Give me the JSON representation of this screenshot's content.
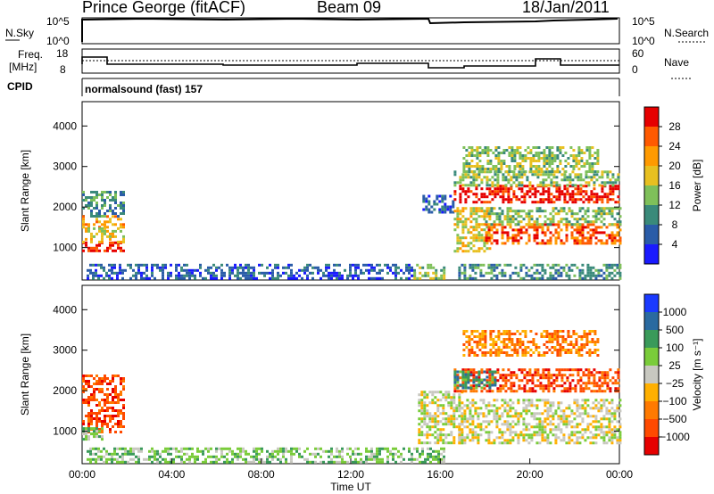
{
  "header": {
    "station": "Prince George (fitACF)",
    "beam": "Beam 09",
    "date": "18/Jan/2011"
  },
  "nsky_panel": {
    "left_label": "N.Sky",
    "left_ticks": [
      "10^5",
      "10^0"
    ],
    "right_ticks": [
      "10^5",
      "10^0"
    ],
    "right_label": "N.Search"
  },
  "freq_panel": {
    "left_label_1": "Freq.",
    "left_label_2": "[MHz]",
    "left_ticks": [
      "18",
      "8"
    ],
    "right_ticks": [
      "60",
      "0"
    ],
    "right_label": "Nave"
  },
  "cpid": {
    "label": "CPID",
    "mode": "normalsound (fast) 157"
  },
  "chart_data": [
    {
      "type": "heatmap",
      "name": "power",
      "ylabel": "Slant Range [km]",
      "ylim": [
        200,
        4600
      ],
      "yticks": [
        "1000",
        "2000",
        "3000",
        "4000"
      ],
      "xlim": [
        0,
        24
      ],
      "colorbar": {
        "label": "Power [dB]",
        "range": [
          0,
          32
        ],
        "ticks": [
          "28",
          "24",
          "20",
          "16",
          "12",
          "8",
          "4"
        ],
        "colors": [
          "#1a1aff",
          "#2a5ca8",
          "#3a8a7a",
          "#7fc05a",
          "#e8c020",
          "#ff9a00",
          "#ff5a00",
          "#e60000"
        ]
      },
      "regions": [
        {
          "t": [
            0.0,
            1.9
          ],
          "r": [
            1800,
            2400
          ],
          "level": 2
        },
        {
          "t": [
            0.0,
            1.9
          ],
          "r": [
            1500,
            1800
          ],
          "level": 5
        },
        {
          "t": [
            0.0,
            1.9
          ],
          "r": [
            900,
            1150
          ],
          "level": 7
        },
        {
          "t": [
            0.0,
            1.9
          ],
          "r": [
            1150,
            1500
          ],
          "level": 4
        },
        {
          "t": [
            0.2,
            14.8
          ],
          "r": [
            250,
            600
          ],
          "level": 1
        },
        {
          "t": [
            14.8,
            16.2
          ],
          "r": [
            250,
            600
          ],
          "level": 3
        },
        {
          "t": [
            15.2,
            16.6
          ],
          "r": [
            1900,
            2300
          ],
          "level": 1
        },
        {
          "t": [
            16.6,
            18.2
          ],
          "r": [
            900,
            2000
          ],
          "level": 4
        },
        {
          "t": [
            16.6,
            24.0
          ],
          "r": [
            2150,
            2550
          ],
          "level": 7
        },
        {
          "t": [
            16.6,
            24.0
          ],
          "r": [
            2550,
            2900
          ],
          "level": 3
        },
        {
          "t": [
            17.0,
            23.0
          ],
          "r": [
            2900,
            3500
          ],
          "level": 3
        },
        {
          "t": [
            18.0,
            24.0
          ],
          "r": [
            1100,
            1600
          ],
          "level": 6
        },
        {
          "t": [
            18.0,
            24.0
          ],
          "r": [
            1600,
            2000
          ],
          "level": 3
        },
        {
          "t": [
            16.8,
            24.0
          ],
          "r": [
            250,
            600
          ],
          "level": 2
        }
      ]
    },
    {
      "type": "heatmap",
      "name": "velocity",
      "ylabel": "Slant Range [km]",
      "ylim": [
        200,
        4600
      ],
      "yticks": [
        "1000",
        "2000",
        "3000",
        "4000"
      ],
      "xlim": [
        0,
        24
      ],
      "xticks": [
        "00:00",
        "04:00",
        "08:00",
        "12:00",
        "16:00",
        "20:00",
        "00:00"
      ],
      "xlabel": "Time UT",
      "colorbar": {
        "label": "Velocity [m s⁻¹]",
        "ticks": [
          "1000",
          "500",
          "100",
          "25",
          "−25",
          "−100",
          "−500",
          "−1000"
        ],
        "colors": [
          "#1a3aff",
          "#2a6aa0",
          "#3a9a5a",
          "#7acc3a",
          "#c8c8c0",
          "#ffb000",
          "#ff7a00",
          "#ff4a00",
          "#e60000"
        ]
      },
      "regions": [
        {
          "t": [
            0.0,
            1.9
          ],
          "r": [
            1000,
            2400
          ],
          "level": 7
        },
        {
          "t": [
            0.0,
            0.9
          ],
          "r": [
            800,
            1100
          ],
          "level": 3
        },
        {
          "t": [
            0.2,
            16.2
          ],
          "r": [
            250,
            600
          ],
          "level": 3
        },
        {
          "t": [
            15.0,
            17.0
          ],
          "r": [
            700,
            2000
          ],
          "level": 4
        },
        {
          "t": [
            16.8,
            24.0
          ],
          "r": [
            700,
            1800
          ],
          "level": 4
        },
        {
          "t": [
            16.6,
            24.0
          ],
          "r": [
            2000,
            2550
          ],
          "level": 7
        },
        {
          "t": [
            16.6,
            18.5
          ],
          "r": [
            2100,
            2500
          ],
          "level": 2
        },
        {
          "t": [
            17.0,
            23.0
          ],
          "r": [
            2900,
            3500
          ],
          "level": 6
        }
      ]
    }
  ]
}
